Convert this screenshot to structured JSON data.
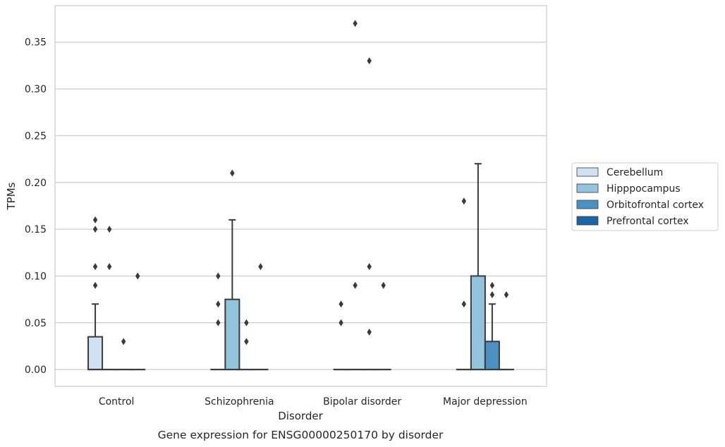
{
  "chart_data": {
    "type": "box",
    "title": "",
    "caption": "Gene expression for ENSG00000250170 by disorder",
    "xlabel": "Disorder",
    "ylabel": "TPMs",
    "ylim": [
      -0.018,
      0.389
    ],
    "yticks": [
      0.0,
      0.05,
      0.1,
      0.15,
      0.2,
      0.25,
      0.3,
      0.35
    ],
    "ytick_labels": [
      "0.00",
      "0.05",
      "0.10",
      "0.15",
      "0.20",
      "0.25",
      "0.30",
      "0.35"
    ],
    "grid": "horizontal",
    "legend_position": "right",
    "categories": [
      "Control",
      "Schizophrenia",
      "Bipolar disorder",
      "Major depression"
    ],
    "series": [
      {
        "name": "Cerebellum",
        "color": "#cfe1f2",
        "boxes": [
          {
            "q1": 0.0,
            "median": 0.0,
            "q3": 0.035,
            "whisker_low": 0.0,
            "whisker_high": 0.07,
            "outliers": [
              0.09,
              0.11,
              0.15,
              0.16
            ]
          },
          {
            "q1": 0.0,
            "median": 0.0,
            "q3": 0.0,
            "whisker_low": 0.0,
            "whisker_high": 0.0,
            "outliers": [
              0.05,
              0.07,
              0.1
            ]
          },
          {
            "q1": 0.0,
            "median": 0.0,
            "q3": 0.0,
            "whisker_low": 0.0,
            "whisker_high": 0.0,
            "outliers": [
              0.05,
              0.07
            ]
          },
          {
            "q1": 0.0,
            "median": 0.0,
            "q3": 0.0,
            "whisker_low": 0.0,
            "whisker_high": 0.0,
            "outliers": [
              0.07,
              0.18
            ]
          }
        ]
      },
      {
        "name": "Hipppocampus",
        "color": "#93c4de",
        "boxes": [
          {
            "q1": 0.0,
            "median": 0.0,
            "q3": 0.0,
            "whisker_low": 0.0,
            "whisker_high": 0.0,
            "outliers": [
              0.11,
              0.15
            ]
          },
          {
            "q1": 0.0,
            "median": 0.0,
            "q3": 0.075,
            "whisker_low": 0.0,
            "whisker_high": 0.16,
            "outliers": [
              0.21
            ]
          },
          {
            "q1": 0.0,
            "median": 0.0,
            "q3": 0.0,
            "whisker_low": 0.0,
            "whisker_high": 0.0,
            "outliers": [
              0.09,
              0.37
            ]
          },
          {
            "q1": 0.0,
            "median": 0.0,
            "q3": 0.1,
            "whisker_low": 0.0,
            "whisker_high": 0.22,
            "outliers": []
          }
        ]
      },
      {
        "name": "Orbitofrontal cortex",
        "color": "#4a90c2",
        "boxes": [
          {
            "q1": 0.0,
            "median": 0.0,
            "q3": 0.0,
            "whisker_low": 0.0,
            "whisker_high": 0.0,
            "outliers": [
              0.03
            ]
          },
          {
            "q1": 0.0,
            "median": 0.0,
            "q3": 0.0,
            "whisker_low": 0.0,
            "whisker_high": 0.0,
            "outliers": [
              0.03,
              0.05
            ]
          },
          {
            "q1": 0.0,
            "median": 0.0,
            "q3": 0.0,
            "whisker_low": 0.0,
            "whisker_high": 0.0,
            "outliers": [
              0.04,
              0.11,
              0.33
            ]
          },
          {
            "q1": 0.0,
            "median": 0.0,
            "q3": 0.03,
            "whisker_low": 0.0,
            "whisker_high": 0.07,
            "outliers": [
              0.08,
              0.09
            ]
          }
        ]
      },
      {
        "name": "Prefrontal cortex",
        "color": "#1c64a8",
        "boxes": [
          {
            "q1": 0.0,
            "median": 0.0,
            "q3": 0.0,
            "whisker_low": 0.0,
            "whisker_high": 0.0,
            "outliers": [
              0.1
            ]
          },
          {
            "q1": 0.0,
            "median": 0.0,
            "q3": 0.0,
            "whisker_low": 0.0,
            "whisker_high": 0.0,
            "outliers": [
              0.11
            ]
          },
          {
            "q1": 0.0,
            "median": 0.0,
            "q3": 0.0,
            "whisker_low": 0.0,
            "whisker_high": 0.0,
            "outliers": [
              0.09
            ]
          },
          {
            "q1": 0.0,
            "median": 0.0,
            "q3": 0.0,
            "whisker_low": 0.0,
            "whisker_high": 0.0,
            "outliers": [
              0.08
            ]
          }
        ]
      }
    ]
  }
}
